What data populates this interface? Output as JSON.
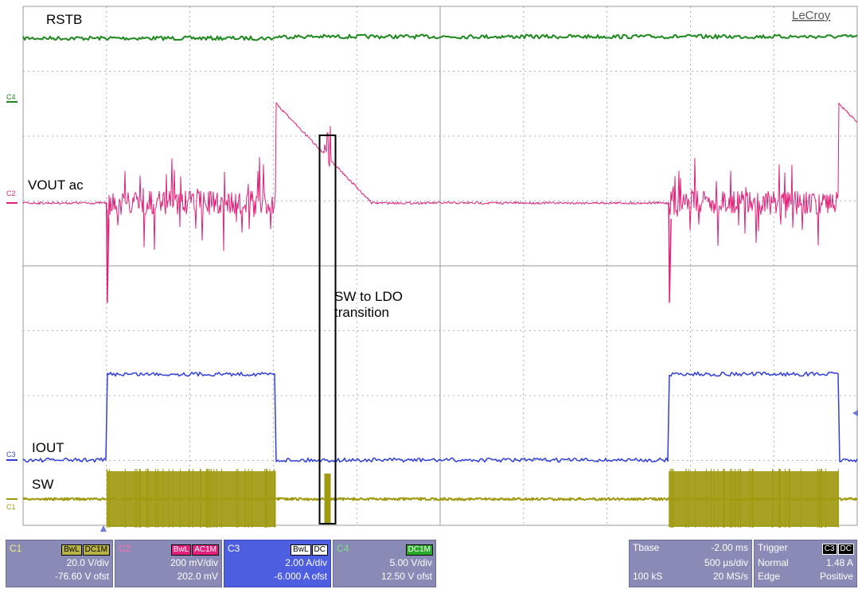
{
  "brand": "LeCroy",
  "colors": {
    "grid": "#9a9a9a",
    "rstb": "#1e8a1e",
    "vout": "#e0207a",
    "iout": "#3040d8",
    "sw": "#a09a10",
    "panel": "#8a8ab7"
  },
  "annotations": {
    "rstb": "RSTB",
    "vout": "VOUT ac",
    "iout": "IOUT",
    "sw": "SW",
    "transition_line1": "SW to LDO",
    "transition_line2": "transition"
  },
  "channel_markers": {
    "c4": "C4",
    "c2": "C2",
    "c3": "C3",
    "c1": "C1"
  },
  "chart_data": {
    "type": "line",
    "grid": true,
    "time_axis": {
      "unit": "ms",
      "tbase": -2.0,
      "per_div": 0.5,
      "divisions": 10
    },
    "phases": [
      {
        "mode": "idle",
        "start_div": 0.0,
        "end_div": 1.0
      },
      {
        "mode": "switching",
        "start_div": 1.0,
        "end_div": 3.03
      },
      {
        "mode": "ldo",
        "start_div": 3.03,
        "end_div": 7.74
      },
      {
        "mode": "switching",
        "start_div": 7.74,
        "end_div": 9.78
      },
      {
        "mode": "ldo",
        "start_div": 9.78,
        "end_div": 10.0
      }
    ],
    "transition_div": 3.65,
    "series": [
      {
        "name": "RSTB",
        "channel": "C4",
        "baseline_div": -1.3,
        "kind": "flat_high"
      },
      {
        "name": "VOUT ac",
        "channel": "C2",
        "baseline_div": 0.0,
        "kind": "ripple_during_switching"
      },
      {
        "name": "IOUT",
        "channel": "C3",
        "baseline_div": 0.0,
        "high_div": 2.15,
        "kind": "step_during_switching"
      },
      {
        "name": "SW",
        "channel": "C1",
        "baseline_div": 0.0,
        "kind": "square_wave_during_switching"
      }
    ]
  },
  "channels": [
    {
      "name": "C1",
      "tags": [
        "BwL",
        "DC1M"
      ],
      "line1": "20.0 V/div",
      "line2": "-76.60 V ofst",
      "color": "#a09a10"
    },
    {
      "name": "C2",
      "tags": [
        "BwL",
        "AC1M"
      ],
      "line1": "200 mV/div",
      "line2": "202.0 mV",
      "color": "#e0207a"
    },
    {
      "name": "C3",
      "tags": [
        "BwL",
        "DC"
      ],
      "line1": "2.00 A/div",
      "line2": "-6.000 A ofst",
      "color": "#3040d8"
    },
    {
      "name": "C4",
      "tags": [
        "DC1M"
      ],
      "line1": "5.00 V/div",
      "line2": "12.50 V ofst",
      "color": "#1e8a1e"
    }
  ],
  "timebase": {
    "label": "Tbase",
    "offset": "-2.00 ms",
    "per_div": "500 µs/div",
    "samples": "100 kS",
    "rate": "20 MS/s"
  },
  "trigger": {
    "label": "Trigger",
    "source_tag": "C3",
    "coupling_tag": "DC",
    "mode": "Normal",
    "level": "1.48 A",
    "type": "Edge",
    "slope": "Positive"
  }
}
